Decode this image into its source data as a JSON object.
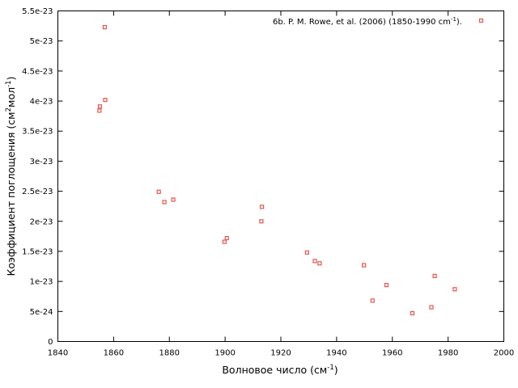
{
  "chart_data": {
    "type": "scatter",
    "xlabel": "Волновое число (см",
    "xlabel_sup": "-1",
    "xlabel_end": ")",
    "ylabel": "Коэффициент поглощения (см",
    "ylabel_sup1": "2",
    "ylabel_mid": "мол",
    "ylabel_sup2": "-1",
    "ylabel_end": ")",
    "xlim": [
      1840,
      2000
    ],
    "ylim": [
      0,
      5.5e-23
    ],
    "xticks": [
      1840,
      1860,
      1880,
      1900,
      1920,
      1940,
      1960,
      1980,
      2000
    ],
    "yticks": [
      0,
      5e-24,
      1e-23,
      1.5e-23,
      2e-23,
      2.5e-23,
      3e-23,
      3.5e-23,
      4e-23,
      4.5e-23,
      5e-23,
      5.5e-23
    ],
    "ytick_labels": [
      "0",
      "5e-24",
      "1e-23",
      "1.5e-23",
      "2e-23",
      "2.5e-23",
      "3e-23",
      "3.5e-23",
      "4e-23",
      "4.5e-23",
      "5e-23",
      "5.5e-23"
    ],
    "grid": false,
    "legend_position": "top-right",
    "marker_color": "#e8554a",
    "series": [
      {
        "name": "6b. P. M. Rowe, et al. (2006) (1850-1990 cm",
        "name_sup": "-1",
        "name_end": ").",
        "points": [
          [
            1854.9,
            3.84e-23
          ],
          [
            1855.1,
            3.91e-23
          ],
          [
            1856.8,
            5.23e-23
          ],
          [
            1857.0,
            4.02e-23
          ],
          [
            1876.2,
            2.49e-23
          ],
          [
            1878.2,
            2.32e-23
          ],
          [
            1881.4,
            2.36e-23
          ],
          [
            1899.8,
            1.66e-23
          ],
          [
            1900.6,
            1.72e-23
          ],
          [
            1913.0,
            2e-23
          ],
          [
            1913.2,
            2.24e-23
          ],
          [
            1929.4,
            1.48e-23
          ],
          [
            1932.2,
            1.34e-23
          ],
          [
            1933.9,
            1.3e-23
          ],
          [
            1949.8,
            1.27e-23
          ],
          [
            1952.9,
            6.8e-24
          ],
          [
            1957.9,
            9.4e-24
          ],
          [
            1967.2,
            4.7e-24
          ],
          [
            1974.0,
            5.7e-24
          ],
          [
            1975.2,
            1.09e-23
          ],
          [
            1982.4,
            8.7e-24
          ]
        ]
      }
    ]
  }
}
